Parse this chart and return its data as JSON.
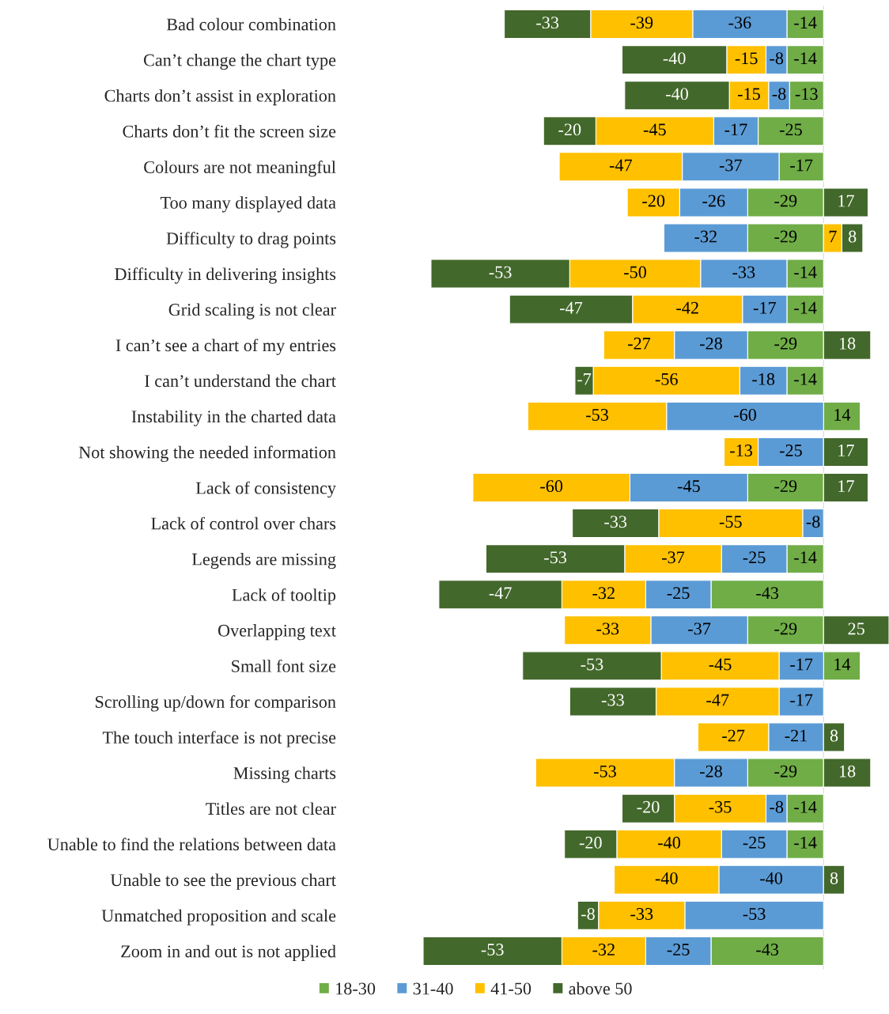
{
  "chart_data": {
    "type": "bar",
    "orientation": "horizontal",
    "stacked": true,
    "data_labels": true,
    "grid": false,
    "legend": "bottom",
    "categories": [
      "Bad colour combination",
      "Can’t change the chart type",
      "Charts don’t assist in exploration",
      "Charts don’t fit the screen size",
      "Colours are not meaningful",
      "Too many displayed data",
      "Difficulty to drag points",
      "Difficulty in delivering insights",
      "Grid scaling is not clear",
      "I can’t see a chart of my entries",
      "I can’t understand the chart",
      "Instability in the charted data",
      "Not showing the needed information",
      "Lack of consistency",
      "Lack of control over chars",
      "Legends are missing",
      "Lack of tooltip",
      "Overlapping text",
      "Small font size",
      "Scrolling up/down for comparison",
      "The touch interface is not precise",
      "Missing charts",
      "Titles are not clear",
      "Unable to find the relations between data",
      "Unable to see the previous chart",
      "Unmatched proposition and scale",
      "Zoom in and out is not applied"
    ],
    "series": [
      {
        "name": "18-30",
        "color": "#70ad47",
        "values": [
          -14,
          -14,
          -13,
          -25,
          -17,
          -29,
          -29,
          -14,
          -14,
          -29,
          -14,
          14,
          null,
          -29,
          null,
          -14,
          -43,
          -29,
          14,
          null,
          null,
          -29,
          -14,
          -14,
          null,
          null,
          -43
        ]
      },
      {
        "name": "31-40",
        "color": "#5b9bd5",
        "values": [
          -36,
          -8,
          -8,
          -17,
          -37,
          -26,
          -32,
          -33,
          -17,
          -28,
          -18,
          -60,
          -25,
          -45,
          -8,
          -25,
          -25,
          -37,
          -17,
          -17,
          -21,
          -28,
          -8,
          -25,
          -40,
          -53,
          -25
        ]
      },
      {
        "name": "41-50",
        "color": "#ffc000",
        "values": [
          -39,
          -15,
          -15,
          -45,
          -47,
          -20,
          7,
          -50,
          -42,
          -27,
          -56,
          -53,
          -13,
          -60,
          -55,
          -37,
          -32,
          -33,
          -45,
          -47,
          -27,
          -53,
          -35,
          -40,
          -40,
          -33,
          -32
        ]
      },
      {
        "name": "above 50",
        "color": "#43682b",
        "values": [
          -33,
          -40,
          -40,
          -20,
          null,
          17,
          8,
          -53,
          -47,
          18,
          -7,
          null,
          17,
          17,
          -33,
          -53,
          -47,
          25,
          -53,
          -33,
          8,
          18,
          -20,
          -20,
          8,
          -8,
          -53
        ]
      }
    ]
  }
}
